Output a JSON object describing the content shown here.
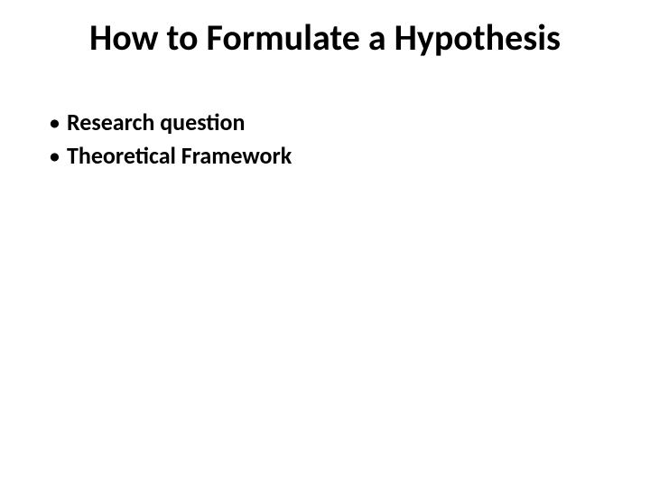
{
  "slide": {
    "title": "How to Formulate a Hypothesis",
    "bullets": [
      "Research question",
      "Theoretical Framework"
    ]
  },
  "style": {
    "background_color": "#ffffff",
    "text_color": "#000000",
    "title_fontsize": 40,
    "title_fontweight": 700,
    "bullet_fontsize": 26,
    "bullet_fontweight": 700,
    "bullet_marker": "•",
    "font_family": "Calibri"
  }
}
